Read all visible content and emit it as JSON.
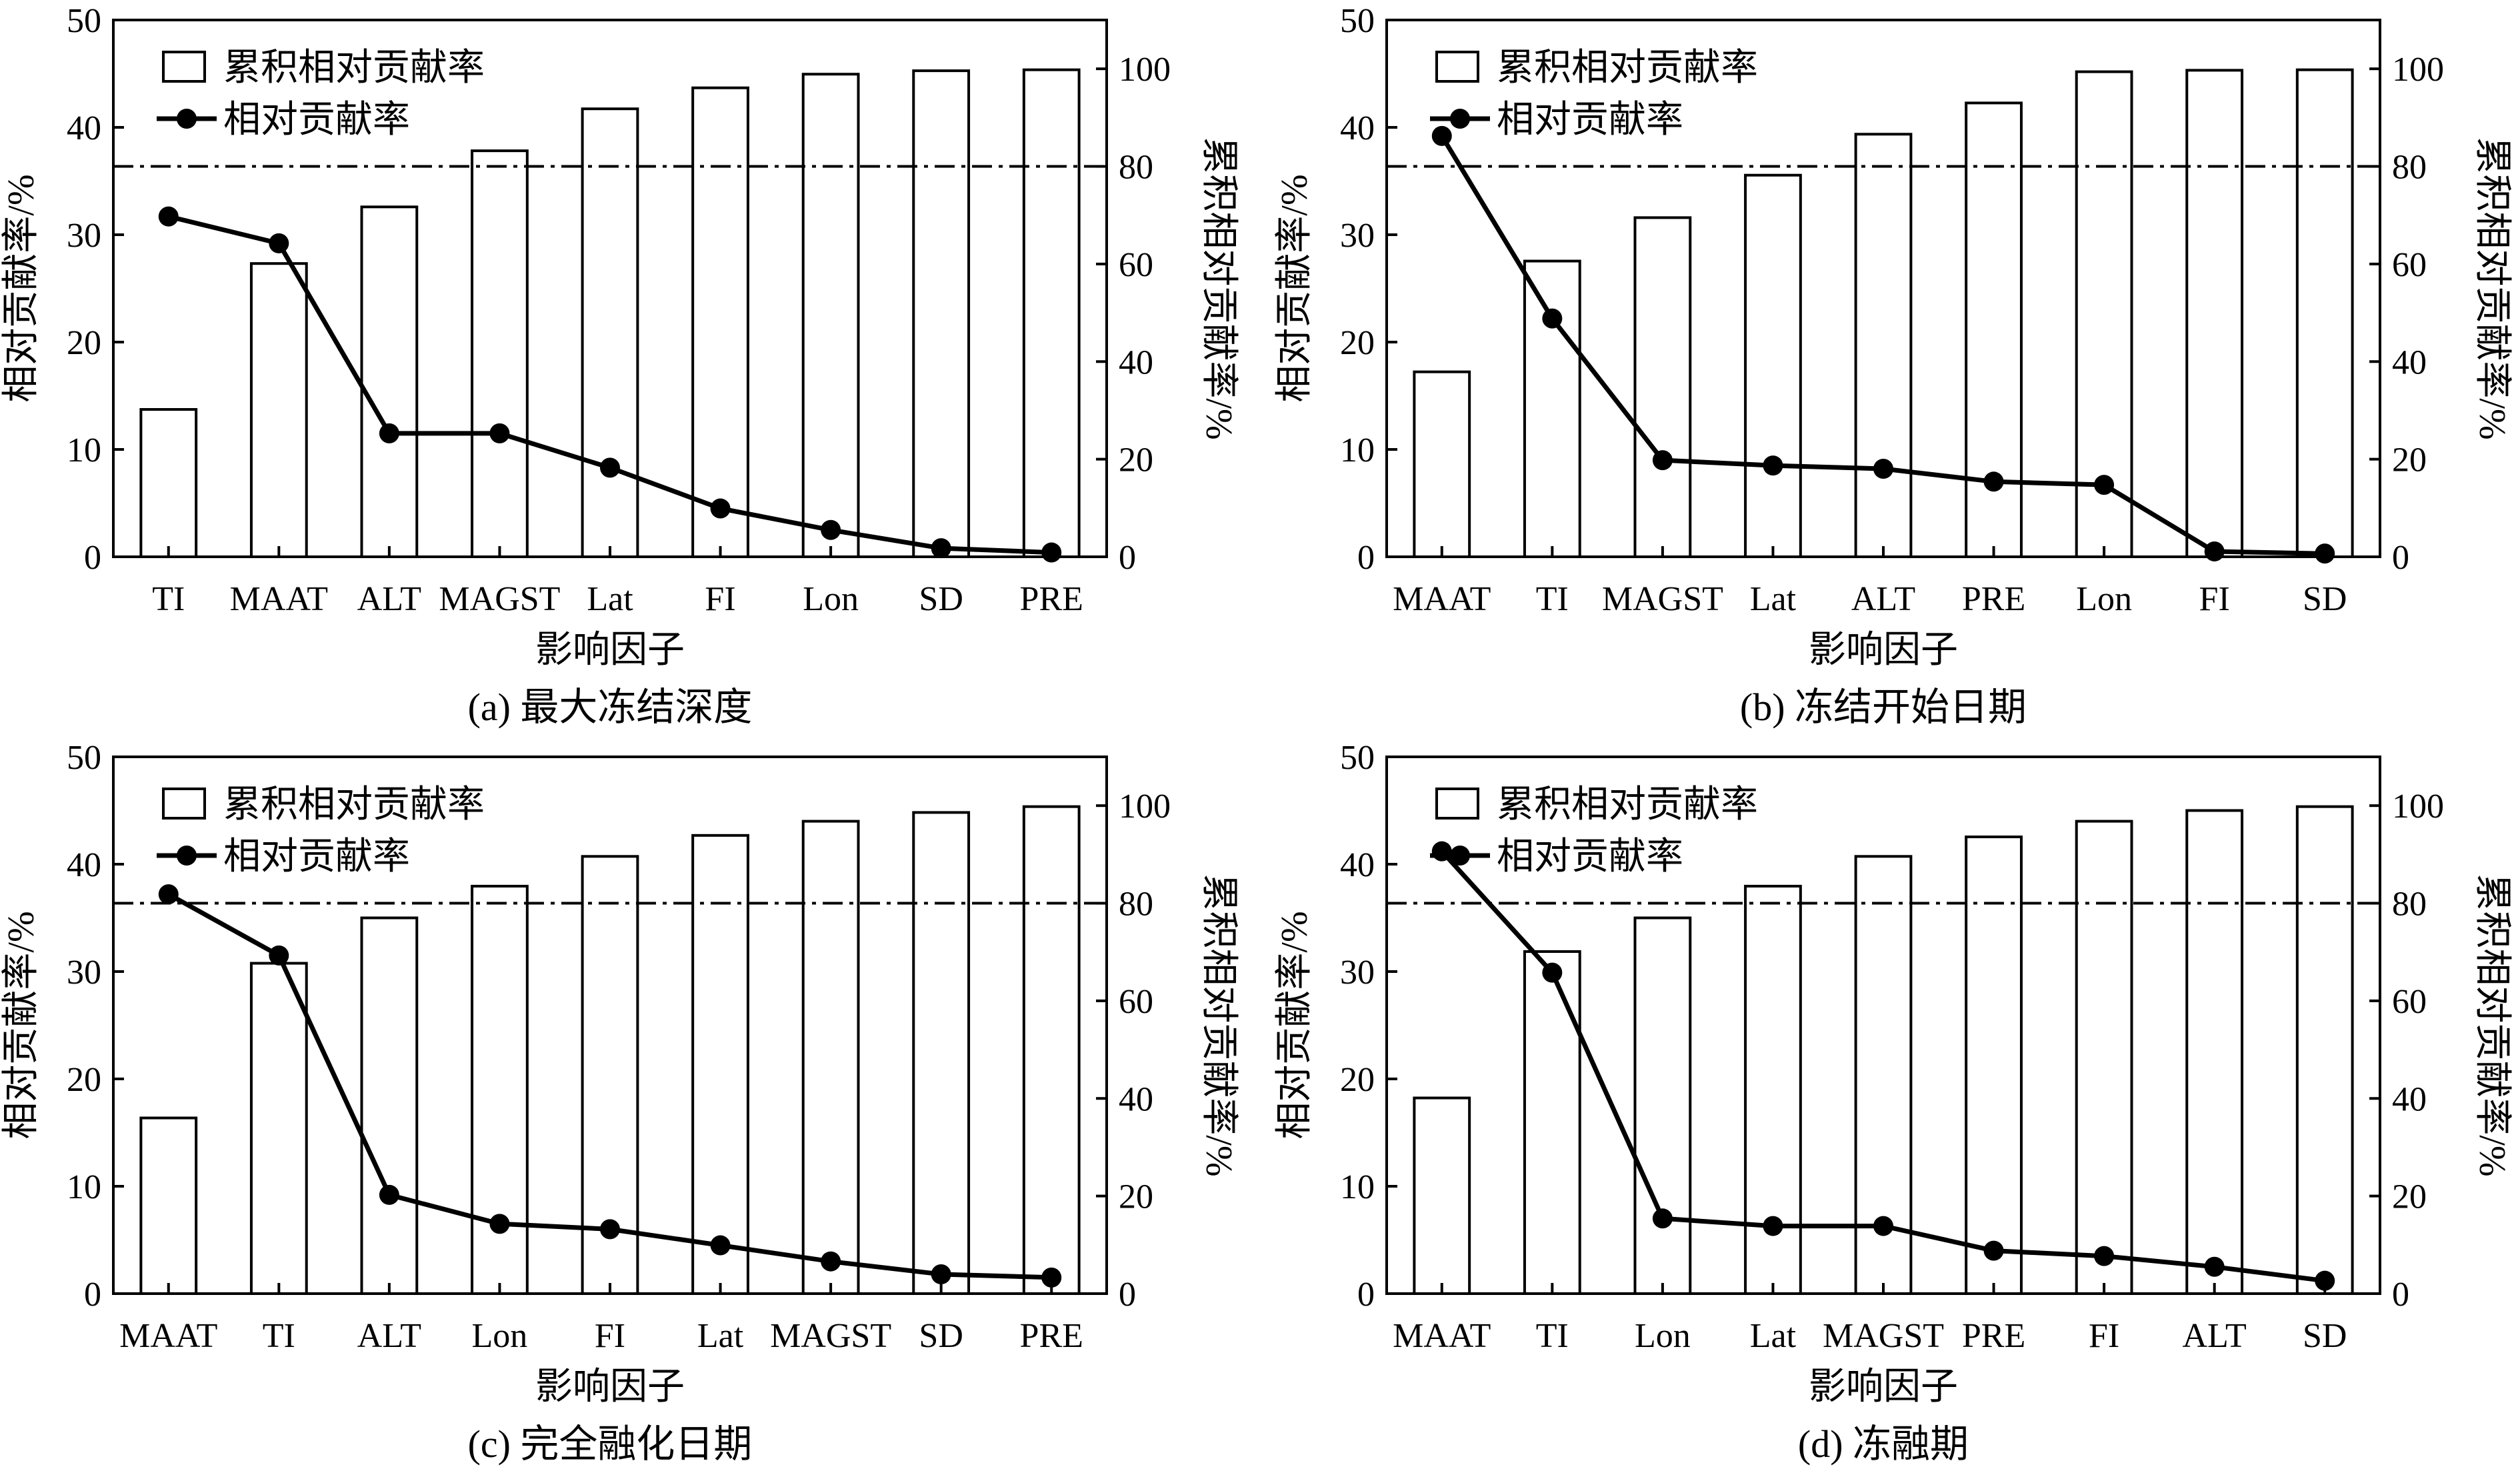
{
  "chart_data": [
    {
      "type": "bar",
      "panel_label": "(a) 最大冻结深度",
      "categories": [
        "TI",
        "MAAT",
        "ALT",
        "MAGST",
        "Lat",
        "FI",
        "Lon",
        "SD",
        "PRE"
      ],
      "series": [
        {
          "name": "累积相对贡献率",
          "axis": "right",
          "values": [
            30.2,
            60.1,
            71.7,
            83.2,
            91.8,
            96.1,
            98.9,
            99.6,
            99.8
          ]
        },
        {
          "name": "相对贡献率",
          "axis": "left",
          "values": [
            31.7,
            29.2,
            11.5,
            11.5,
            8.3,
            4.5,
            2.5,
            0.8,
            0.4
          ]
        }
      ],
      "xlabel": "影响因子",
      "ylabel": "相对贡献率/%",
      "y2label": "累积相对贡献率/%",
      "ylim": [
        0,
        50
      ],
      "y2lim": [
        0,
        110
      ],
      "yticks": [
        "0",
        "10",
        "20",
        "30",
        "40",
        "50"
      ],
      "y2ticks": [
        "0",
        "20",
        "40",
        "60",
        "80",
        "100"
      ],
      "threshold": 80
    },
    {
      "type": "bar",
      "panel_label": "(b) 冻结开始日期",
      "categories": [
        "MAAT",
        "TI",
        "MAGST",
        "Lat",
        "ALT",
        "PRE",
        "Lon",
        "FI",
        "SD"
      ],
      "series": [
        {
          "name": "累积相对贡献率",
          "axis": "right",
          "values": [
            37.9,
            60.6,
            69.5,
            78.2,
            86.6,
            93.0,
            99.4,
            99.7,
            99.8
          ]
        },
        {
          "name": "相对贡献率",
          "axis": "left",
          "values": [
            39.2,
            22.2,
            9.0,
            8.5,
            8.2,
            7.0,
            6.7,
            0.5,
            0.3
          ]
        }
      ],
      "xlabel": "影响因子",
      "ylabel": "相对贡献率/%",
      "y2label": "累积相对贡献率/%",
      "ylim": [
        0,
        50
      ],
      "y2lim": [
        0,
        110
      ],
      "yticks": [
        "0",
        "10",
        "20",
        "30",
        "40",
        "50"
      ],
      "y2ticks": [
        "0",
        "20",
        "40",
        "60",
        "80",
        "100"
      ],
      "threshold": 80
    },
    {
      "type": "bar",
      "panel_label": "(c) 完全融化日期",
      "categories": [
        "MAAT",
        "TI",
        "ALT",
        "Lon",
        "FI",
        "Lat",
        "MAGST",
        "SD",
        "PRE"
      ],
      "series": [
        {
          "name": "累积相对贡献率",
          "axis": "right",
          "values": [
            36.0,
            67.7,
            77.0,
            83.5,
            89.6,
            93.9,
            96.8,
            98.6,
            99.8
          ]
        },
        {
          "name": "相对贡献率",
          "axis": "left",
          "values": [
            37.2,
            31.5,
            9.2,
            6.5,
            6.0,
            4.5,
            3.0,
            1.8,
            1.5
          ]
        }
      ],
      "xlabel": "影响因子",
      "ylabel": "相对贡献率/%",
      "y2label": "累积相对贡献率/%",
      "ylim": [
        0,
        50
      ],
      "y2lim": [
        0,
        110
      ],
      "yticks": [
        "0",
        "10",
        "20",
        "30",
        "40",
        "50"
      ],
      "y2ticks": [
        "0",
        "20",
        "40",
        "60",
        "80",
        "100"
      ],
      "threshold": 80
    },
    {
      "type": "bar",
      "panel_label": "(d) 冻融期",
      "categories": [
        "MAAT",
        "TI",
        "Lon",
        "Lat",
        "MAGST",
        "PRE",
        "FI",
        "ALT",
        "SD"
      ],
      "series": [
        {
          "name": "累积相对贡献率",
          "axis": "right",
          "values": [
            40.1,
            70.1,
            77.0,
            83.5,
            89.6,
            93.6,
            96.8,
            99.0,
            99.8
          ]
        },
        {
          "name": "相对贡献率",
          "axis": "left",
          "values": [
            41.2,
            29.9,
            7.0,
            6.3,
            6.3,
            4.0,
            3.5,
            2.5,
            1.2
          ]
        }
      ],
      "xlabel": "影响因子",
      "ylabel": "相对贡献率/%",
      "y2label": "累积相对贡献率/%",
      "ylim": [
        0,
        50
      ],
      "y2lim": [
        0,
        110
      ],
      "yticks": [
        "0",
        "10",
        "20",
        "30",
        "40",
        "50"
      ],
      "y2ticks": [
        "0",
        "20",
        "40",
        "60",
        "80",
        "100"
      ],
      "threshold": 80
    }
  ]
}
